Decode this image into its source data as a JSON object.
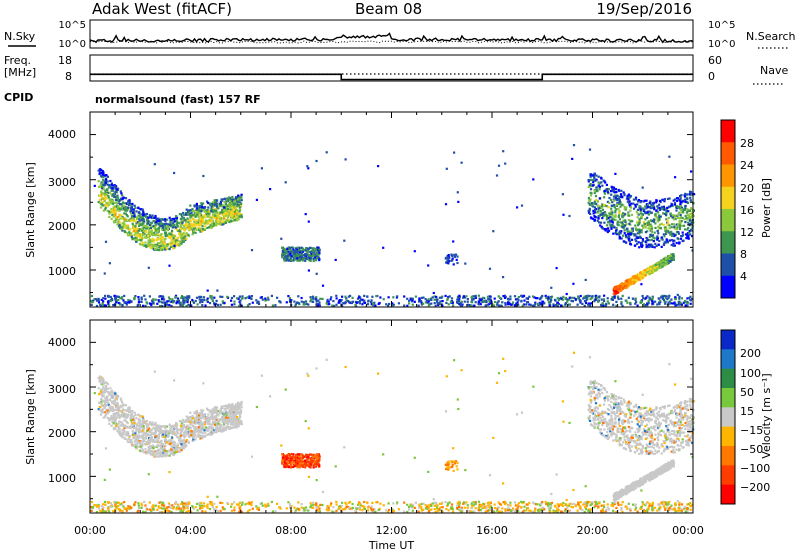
{
  "header": {
    "station": "Adak West (fitACF)",
    "beam": "Beam 08",
    "date": "19/Sep/2016"
  },
  "noise_panel": {
    "left_label": "N.Sky",
    "left_ticks": [
      "10^5",
      "10^0"
    ],
    "right_label": "N.Search",
    "right_ticks": [
      "10^5",
      "10^0"
    ]
  },
  "freq_panel": {
    "left_label_line1": "Freq.",
    "left_label_line2": "[MHz]",
    "left_ticks": [
      "18",
      "8"
    ],
    "right_label": "Nave",
    "right_ticks": [
      "60",
      "0"
    ]
  },
  "cpid": {
    "label": "CPID",
    "value": "normalsound (fast) 157 RF"
  },
  "power_panel": {
    "ylabel": "Slant Range [km]",
    "yticks": [
      "4000",
      "3000",
      "2000",
      "1000"
    ],
    "cbar_label": "Power [dB]",
    "cbar_ticks": [
      "28",
      "24",
      "20",
      "16",
      "12",
      "8",
      "4"
    ],
    "cbar_colors": [
      "#ff0000",
      "#ff5a00",
      "#ff9600",
      "#f5d21e",
      "#8cc83c",
      "#3c9650",
      "#1e50aa",
      "#0000ff"
    ]
  },
  "velocity_panel": {
    "ylabel": "Slant Range [km]",
    "yticks": [
      "4000",
      "3000",
      "2000",
      "1000"
    ],
    "cbar_label": "Velocity [m s⁻¹]",
    "cbar_ticks": [
      "200",
      "100",
      "50",
      "15",
      "−15",
      "−50",
      "−100",
      "−200"
    ],
    "cbar_colors": [
      "#0a28c8",
      "#1e78c8",
      "#2d8c46",
      "#78c83c",
      "#c8c8c8",
      "#ffb400",
      "#ff7800",
      "#ff3c00",
      "#ff0000"
    ]
  },
  "x_axis": {
    "label": "Time UT",
    "ticks": [
      "00:00",
      "04:00",
      "08:00",
      "12:00",
      "16:00",
      "20:00",
      "00:00"
    ]
  },
  "chart_data": {
    "type": "heatmap",
    "x_range_hours": [
      0,
      24
    ],
    "y_range_km": [
      180,
      4500
    ],
    "frequency_mhz": [
      {
        "start_h": 0,
        "end_h": 10,
        "value": 12.5
      },
      {
        "start_h": 10,
        "end_h": 18,
        "value": 10.5
      },
      {
        "start_h": 18,
        "end_h": 24,
        "value": 12.5
      }
    ],
    "nave_approx": 12,
    "regions": [
      {
        "id": "morning_arc",
        "hours": [
          0.3,
          6.0
        ],
        "range_km": [
          1450,
          3200
        ],
        "power_db": [
          4,
          22
        ],
        "velocity": "-15 to 15"
      },
      {
        "id": "patch_0830",
        "hours": [
          7.6,
          9.1
        ],
        "range_km": [
          1150,
          1550
        ],
        "power_db": [
          4,
          16
        ],
        "velocity": "-50 to -200"
      },
      {
        "id": "patch_1430",
        "hours": [
          14.1,
          14.6
        ],
        "range_km": [
          1100,
          1350
        ],
        "power_db": [
          4,
          10
        ],
        "velocity": "-50 to -100"
      },
      {
        "id": "evening_arc",
        "hours": [
          19.8,
          24.0
        ],
        "range_km": [
          1550,
          3100
        ],
        "power_db": [
          4,
          22
        ],
        "velocity": "-15 to 15"
      },
      {
        "id": "evening_streak",
        "hours": [
          20.8,
          23.2
        ],
        "range_km": [
          500,
          1300
        ],
        "power_db": [
          14,
          30
        ],
        "velocity": "-15 to 15"
      },
      {
        "id": "near_range",
        "hours": [
          0,
          24
        ],
        "range_km": [
          180,
          400
        ],
        "power_db": [
          4,
          14
        ],
        "velocity": "-15 to -50"
      }
    ]
  }
}
